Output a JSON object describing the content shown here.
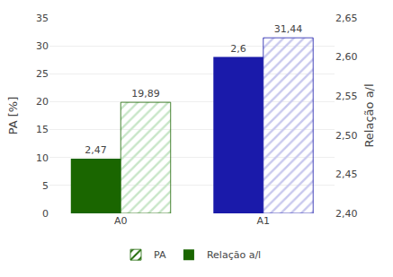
{
  "chart_data": {
    "type": "bar",
    "categories": [
      "A0",
      "A1"
    ],
    "series": [
      {
        "name": "Relação a/l",
        "axis": "y2",
        "colors": [
          "#1a6600",
          "#1a1aaa"
        ],
        "values": [
          2.47,
          2.6
        ],
        "value_labels": [
          "2,47",
          "2,6"
        ]
      },
      {
        "name": "PA",
        "colors": [
          "#c8e6c8",
          "#c8c8ee"
        ],
        "marker": "hatch",
        "values": [
          19.89,
          31.44
        ],
        "value_labels": [
          "19,89",
          "31,44"
        ]
      }
    ],
    "ylabel": "PA [%]",
    "y2label": "Relação a/l",
    "ylim": [
      0,
      35
    ],
    "yticks": [
      0,
      5,
      10,
      15,
      20,
      25,
      30,
      35
    ],
    "y2lim": [
      2.4,
      2.65
    ],
    "y2ticks": [
      {
        "value": 2.4,
        "label": "2,40"
      },
      {
        "value": 2.45,
        "label": "2,45"
      },
      {
        "value": 2.5,
        "label": "2,50"
      },
      {
        "value": 2.55,
        "label": "2,55"
      },
      {
        "value": 2.6,
        "label": "2,60"
      },
      {
        "value": 2.65,
        "label": "2,65"
      }
    ],
    "data_labels": true,
    "grid": true,
    "legend": "bottom"
  }
}
